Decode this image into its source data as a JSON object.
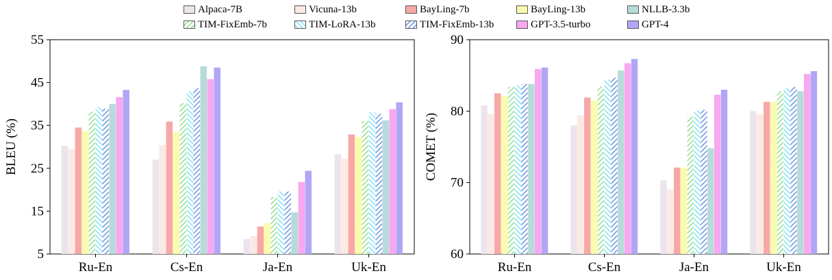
{
  "legend": [
    {
      "name": "Alpaca-7B",
      "color": "#ece4ec",
      "pattern": "solid"
    },
    {
      "name": "Vicuna-13b",
      "color": "#fbe9e3",
      "pattern": "solid"
    },
    {
      "name": "BayLing-7b",
      "color": "#f8a7a7",
      "pattern": "solid"
    },
    {
      "name": "BayLing-13b",
      "color": "#fbfbad",
      "pattern": "solid"
    },
    {
      "name": "NLLB-3.3b",
      "color": "#b7dbda",
      "pattern": "solid"
    },
    {
      "name": "TIM-FixEmb-7b",
      "color": "#8ee08e",
      "pattern": "hatch-green"
    },
    {
      "name": "TIM-LoRA-13b",
      "color": "#7fe3ef",
      "pattern": "hatch-cyan"
    },
    {
      "name": "TIM-FixEmb-13b",
      "color": "#6f93e4",
      "pattern": "hatch-blue"
    },
    {
      "name": "GPT-3.5-turbo",
      "color": "#f7a8ef",
      "pattern": "solid"
    },
    {
      "name": "GPT-4",
      "color": "#b1a6f5",
      "pattern": "solid"
    }
  ],
  "chart_data": [
    {
      "type": "bar",
      "ylabel": "BLEU (%)",
      "ylim": [
        5,
        55
      ],
      "yticks": [
        5,
        15,
        25,
        35,
        45,
        55
      ],
      "categories": [
        "Ru-En",
        "Cs-En",
        "Ja-En",
        "Uk-En"
      ],
      "series": [
        {
          "name": "Alpaca-7B",
          "values": [
            30.2,
            27.0,
            8.5,
            28.3
          ]
        },
        {
          "name": "Vicuna-13b",
          "values": [
            29.5,
            30.4,
            9.2,
            27.2
          ]
        },
        {
          "name": "BayLing-7b",
          "values": [
            34.5,
            35.9,
            11.4,
            32.9
          ]
        },
        {
          "name": "BayLing-13b",
          "values": [
            33.6,
            33.4,
            12.2,
            32.3
          ]
        },
        {
          "name": "TIM-FixEmb-7b",
          "values": [
            38.2,
            40.2,
            18.3,
            36.0
          ]
        },
        {
          "name": "TIM-LoRA-13b",
          "values": [
            39.3,
            42.9,
            19.6,
            38.1
          ]
        },
        {
          "name": "TIM-FixEmb-13b",
          "values": [
            38.9,
            43.7,
            19.6,
            37.7
          ]
        },
        {
          "name": "NLLB-3.3b",
          "values": [
            40.0,
            48.8,
            14.7,
            36.2
          ]
        },
        {
          "name": "GPT-3.5-turbo",
          "values": [
            41.6,
            45.8,
            21.8,
            38.8
          ]
        },
        {
          "name": "GPT-4",
          "values": [
            43.3,
            48.5,
            24.4,
            40.4
          ]
        }
      ]
    },
    {
      "type": "bar",
      "ylabel": "COMET (%)",
      "ylim": [
        60,
        90
      ],
      "yticks": [
        60,
        70,
        80,
        90
      ],
      "categories": [
        "Ru-En",
        "Cs-En",
        "Ja-En",
        "Uk-En"
      ],
      "series": [
        {
          "name": "Alpaca-7B",
          "values": [
            80.8,
            78.0,
            70.3,
            80.0
          ]
        },
        {
          "name": "Vicuna-13b",
          "values": [
            79.6,
            79.4,
            69.0,
            79.6
          ]
        },
        {
          "name": "BayLing-7b",
          "values": [
            82.5,
            81.9,
            72.1,
            81.3
          ]
        },
        {
          "name": "BayLing-13b",
          "values": [
            82.1,
            81.5,
            72.1,
            81.3
          ]
        },
        {
          "name": "TIM-FixEmb-7b",
          "values": [
            83.4,
            83.4,
            79.2,
            82.8
          ]
        },
        {
          "name": "TIM-LoRA-13b",
          "values": [
            83.6,
            84.4,
            80.1,
            83.2
          ]
        },
        {
          "name": "TIM-FixEmb-13b",
          "values": [
            83.8,
            84.7,
            80.2,
            83.4
          ]
        },
        {
          "name": "NLLB-3.3b",
          "values": [
            83.8,
            85.7,
            74.8,
            82.8
          ]
        },
        {
          "name": "GPT-3.5-turbo",
          "values": [
            85.9,
            86.7,
            82.3,
            85.2
          ]
        },
        {
          "name": "GPT-4",
          "values": [
            86.1,
            87.3,
            83.0,
            85.6
          ]
        }
      ]
    }
  ]
}
